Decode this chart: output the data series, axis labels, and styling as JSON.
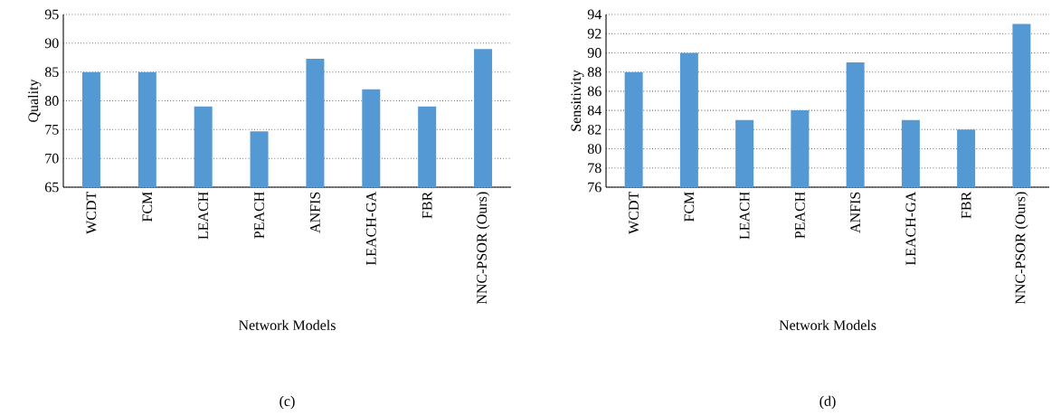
{
  "chart_data": [
    {
      "type": "bar",
      "categories": [
        "WCDT",
        "FCM",
        "LEACH",
        "PEACH",
        "ANFIS",
        "LEACH-GA",
        "FBR",
        "NNC-PSOR (Ours)"
      ],
      "values": [
        85,
        85,
        79,
        74.7,
        87.3,
        82,
        79,
        89
      ],
      "color": "#5499d3",
      "xlabel": "Network Models",
      "ylabel": "Quality",
      "ylim": [
        65,
        95
      ],
      "yticks": [
        65,
        70,
        75,
        80,
        85,
        90,
        95
      ],
      "grid": "y",
      "annotations": [
        "(c)"
      ]
    },
    {
      "type": "bar",
      "categories": [
        "WCDT",
        "FCM",
        "LEACH",
        "PEACH",
        "ANFIS",
        "LEACH-GA",
        "FBR",
        "NNC-PSOR (Ours)"
      ],
      "values": [
        88,
        90,
        83,
        84,
        89,
        83,
        82,
        93
      ],
      "color": "#5499d3",
      "xlabel": "Network Models",
      "ylabel": "Sensitivity",
      "ylim": [
        76,
        94
      ],
      "yticks": [
        76,
        78,
        80,
        82,
        84,
        86,
        88,
        90,
        92,
        94
      ],
      "grid": "y",
      "annotations": [
        "(d)"
      ]
    }
  ]
}
